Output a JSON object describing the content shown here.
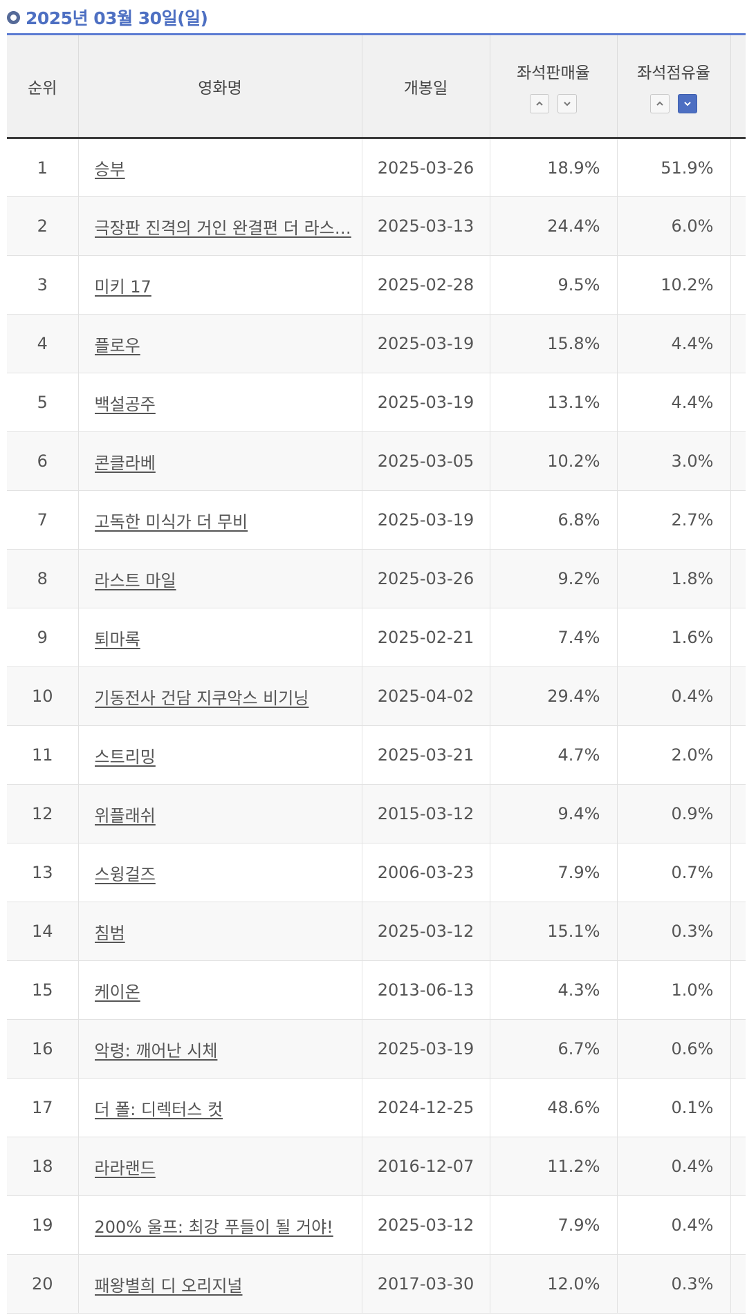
{
  "header": {
    "date_title": "2025년 03월 30일(일)"
  },
  "table": {
    "columns": {
      "rank": "순위",
      "title": "영화명",
      "release": "개봉일",
      "sales": "좌석판매율",
      "share": "좌석점유율"
    },
    "sort": {
      "sales": "none",
      "share": "descending"
    },
    "rows": [
      {
        "rank": "1",
        "title": "승부",
        "release": "2025-03-26",
        "sales": "18.9%",
        "share": "51.9%"
      },
      {
        "rank": "2",
        "title": "극장판 진격의 거인 완결편 더 라스…",
        "release": "2025-03-13",
        "sales": "24.4%",
        "share": "6.0%"
      },
      {
        "rank": "3",
        "title": "미키 17",
        "release": "2025-02-28",
        "sales": "9.5%",
        "share": "10.2%"
      },
      {
        "rank": "4",
        "title": "플로우",
        "release": "2025-03-19",
        "sales": "15.8%",
        "share": "4.4%"
      },
      {
        "rank": "5",
        "title": "백설공주",
        "release": "2025-03-19",
        "sales": "13.1%",
        "share": "4.4%"
      },
      {
        "rank": "6",
        "title": "콘클라베",
        "release": "2025-03-05",
        "sales": "10.2%",
        "share": "3.0%"
      },
      {
        "rank": "7",
        "title": "고독한 미식가 더 무비",
        "release": "2025-03-19",
        "sales": "6.8%",
        "share": "2.7%"
      },
      {
        "rank": "8",
        "title": "라스트 마일",
        "release": "2025-03-26",
        "sales": "9.2%",
        "share": "1.8%"
      },
      {
        "rank": "9",
        "title": "퇴마록",
        "release": "2025-02-21",
        "sales": "7.4%",
        "share": "1.6%"
      },
      {
        "rank": "10",
        "title": "기동전사 건담 지쿠악스 비기닝",
        "release": "2025-04-02",
        "sales": "29.4%",
        "share": "0.4%"
      },
      {
        "rank": "11",
        "title": "스트리밍",
        "release": "2025-03-21",
        "sales": "4.7%",
        "share": "2.0%"
      },
      {
        "rank": "12",
        "title": "위플래쉬",
        "release": "2015-03-12",
        "sales": "9.4%",
        "share": "0.9%"
      },
      {
        "rank": "13",
        "title": "스윙걸즈",
        "release": "2006-03-23",
        "sales": "7.9%",
        "share": "0.7%"
      },
      {
        "rank": "14",
        "title": "침범",
        "release": "2025-03-12",
        "sales": "15.1%",
        "share": "0.3%"
      },
      {
        "rank": "15",
        "title": "케이온",
        "release": "2013-06-13",
        "sales": "4.3%",
        "share": "1.0%"
      },
      {
        "rank": "16",
        "title": "악령: 깨어난 시체",
        "release": "2025-03-19",
        "sales": "6.7%",
        "share": "0.6%"
      },
      {
        "rank": "17",
        "title": "더 폴: 디렉터스 컷",
        "release": "2024-12-25",
        "sales": "48.6%",
        "share": "0.1%"
      },
      {
        "rank": "18",
        "title": "라라랜드",
        "release": "2016-12-07",
        "sales": "11.2%",
        "share": "0.4%"
      },
      {
        "rank": "19",
        "title": "200% 울프: 최강 푸들이 될 거야!",
        "release": "2025-03-12",
        "sales": "7.9%",
        "share": "0.4%"
      },
      {
        "rank": "20",
        "title": "패왕별희 디 오리지널",
        "release": "2017-03-30",
        "sales": "12.0%",
        "share": "0.3%"
      }
    ]
  }
}
